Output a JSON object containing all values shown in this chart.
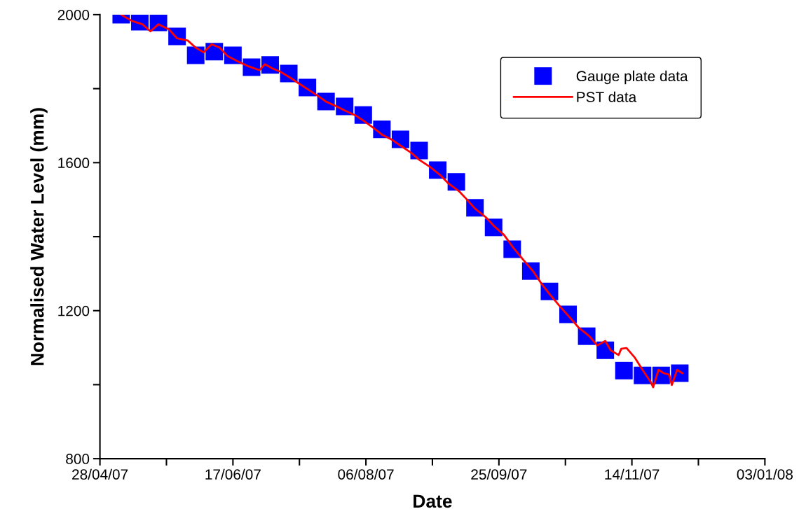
{
  "chart_data": {
    "type": "line",
    "xlabel": "Date",
    "ylabel": "Normalised Water Level (mm)",
    "xlim": [
      "2007-04-28",
      "2008-01-03"
    ],
    "xticks": [
      {
        "value": "2007-04-28",
        "label": "28/04/07"
      },
      {
        "value": "2007-05-23",
        "label": null
      },
      {
        "value": "2007-06-17",
        "label": "17/06/07"
      },
      {
        "value": "2007-07-12",
        "label": null
      },
      {
        "value": "2007-08-06",
        "label": "06/08/07"
      },
      {
        "value": "2007-08-31",
        "label": null
      },
      {
        "value": "2007-09-25",
        "label": "25/09/07"
      },
      {
        "value": "2007-10-20",
        "label": null
      },
      {
        "value": "2007-11-14",
        "label": "14/11/07"
      },
      {
        "value": "2007-12-09",
        "label": null
      },
      {
        "value": "2008-01-03",
        "label": "03/01/08"
      }
    ],
    "ylim": [
      800,
      2000
    ],
    "yticks": [
      800,
      {
        "value": 1000,
        "label": null
      },
      1200,
      {
        "value": 1400,
        "label": null
      },
      1600,
      {
        "value": 1800,
        "label": null
      },
      2000
    ],
    "grid": false,
    "legend": "top right",
    "series": [
      {
        "name": "Gauge plate data",
        "type": "scatter",
        "marker": "square",
        "color": "#0000ff",
        "x": [
          "2007-05-06",
          "2007-05-13",
          "2007-05-20",
          "2007-05-27",
          "2007-06-03",
          "2007-06-10",
          "2007-06-17",
          "2007-06-24",
          "2007-07-01",
          "2007-07-08",
          "2007-07-15",
          "2007-07-22",
          "2007-07-29",
          "2007-08-05",
          "2007-08-12",
          "2007-08-19",
          "2007-08-26",
          "2007-09-02",
          "2007-09-09",
          "2007-09-16",
          "2007-09-23",
          "2007-09-30",
          "2007-10-07",
          "2007-10-14",
          "2007-10-21",
          "2007-10-28",
          "2007-11-04",
          "2007-11-11",
          "2007-11-18",
          "2007-11-25",
          "2007-12-02"
        ],
        "values": [
          2000,
          1981,
          1979,
          1941,
          1890,
          1900,
          1890,
          1858,
          1864,
          1841,
          1803,
          1765,
          1752,
          1729,
          1690,
          1663,
          1633,
          1580,
          1548,
          1478,
          1425,
          1366,
          1307,
          1252,
          1190,
          1131,
          1093,
          1038,
          1025,
          1025,
          1031
        ]
      },
      {
        "name": "PST data",
        "marker": "none",
        "line_style": "solid",
        "color": "#ff0000",
        "x": [
          "2007-05-06",
          "2007-05-10",
          "2007-05-14",
          "2007-05-17",
          "2007-05-20",
          "2007-05-24",
          "2007-05-27",
          "2007-05-31",
          "2007-06-03",
          "2007-06-06",
          "2007-06-09",
          "2007-06-12",
          "2007-06-15",
          "2007-06-19",
          "2007-06-23",
          "2007-06-27",
          "2007-06-29",
          "2007-07-02",
          "2007-07-05",
          "2007-07-08",
          "2007-07-12",
          "2007-07-15",
          "2007-07-19",
          "2007-07-22",
          "2007-07-26",
          "2007-07-29",
          "2007-08-02",
          "2007-08-05",
          "2007-08-09",
          "2007-08-12",
          "2007-08-16",
          "2007-08-19",
          "2007-08-23",
          "2007-08-26",
          "2007-08-30",
          "2007-09-03",
          "2007-09-06",
          "2007-09-10",
          "2007-09-13",
          "2007-09-16",
          "2007-09-20",
          "2007-09-23",
          "2007-09-27",
          "2007-09-30",
          "2007-10-04",
          "2007-10-08",
          "2007-10-11",
          "2007-10-14",
          "2007-10-18",
          "2007-10-22",
          "2007-10-25",
          "2007-10-29",
          "2007-11-01",
          "2007-11-04",
          "2007-11-06",
          "2007-11-09",
          "2007-11-10",
          "2007-11-12",
          "2007-11-15",
          "2007-11-18",
          "2007-11-21",
          "2007-11-22",
          "2007-11-24",
          "2007-11-26",
          "2007-11-28",
          "2007-11-29",
          "2007-12-01",
          "2007-12-03"
        ],
        "values": [
          2000,
          1983,
          1974,
          1955,
          1974,
          1960,
          1936,
          1930,
          1911,
          1898,
          1920,
          1911,
          1888,
          1873,
          1860,
          1850,
          1866,
          1854,
          1845,
          1832,
          1813,
          1799,
          1780,
          1765,
          1752,
          1741,
          1728,
          1714,
          1693,
          1676,
          1661,
          1646,
          1627,
          1608,
          1589,
          1566,
          1544,
          1523,
          1500,
          1476,
          1453,
          1430,
          1404,
          1374,
          1339,
          1305,
          1273,
          1245,
          1211,
          1179,
          1154,
          1131,
          1106,
          1118,
          1093,
          1080,
          1097,
          1099,
          1074,
          1040,
          1008,
          993,
          1040,
          1031,
          1027,
          999,
          1040,
          1031
        ]
      }
    ]
  }
}
